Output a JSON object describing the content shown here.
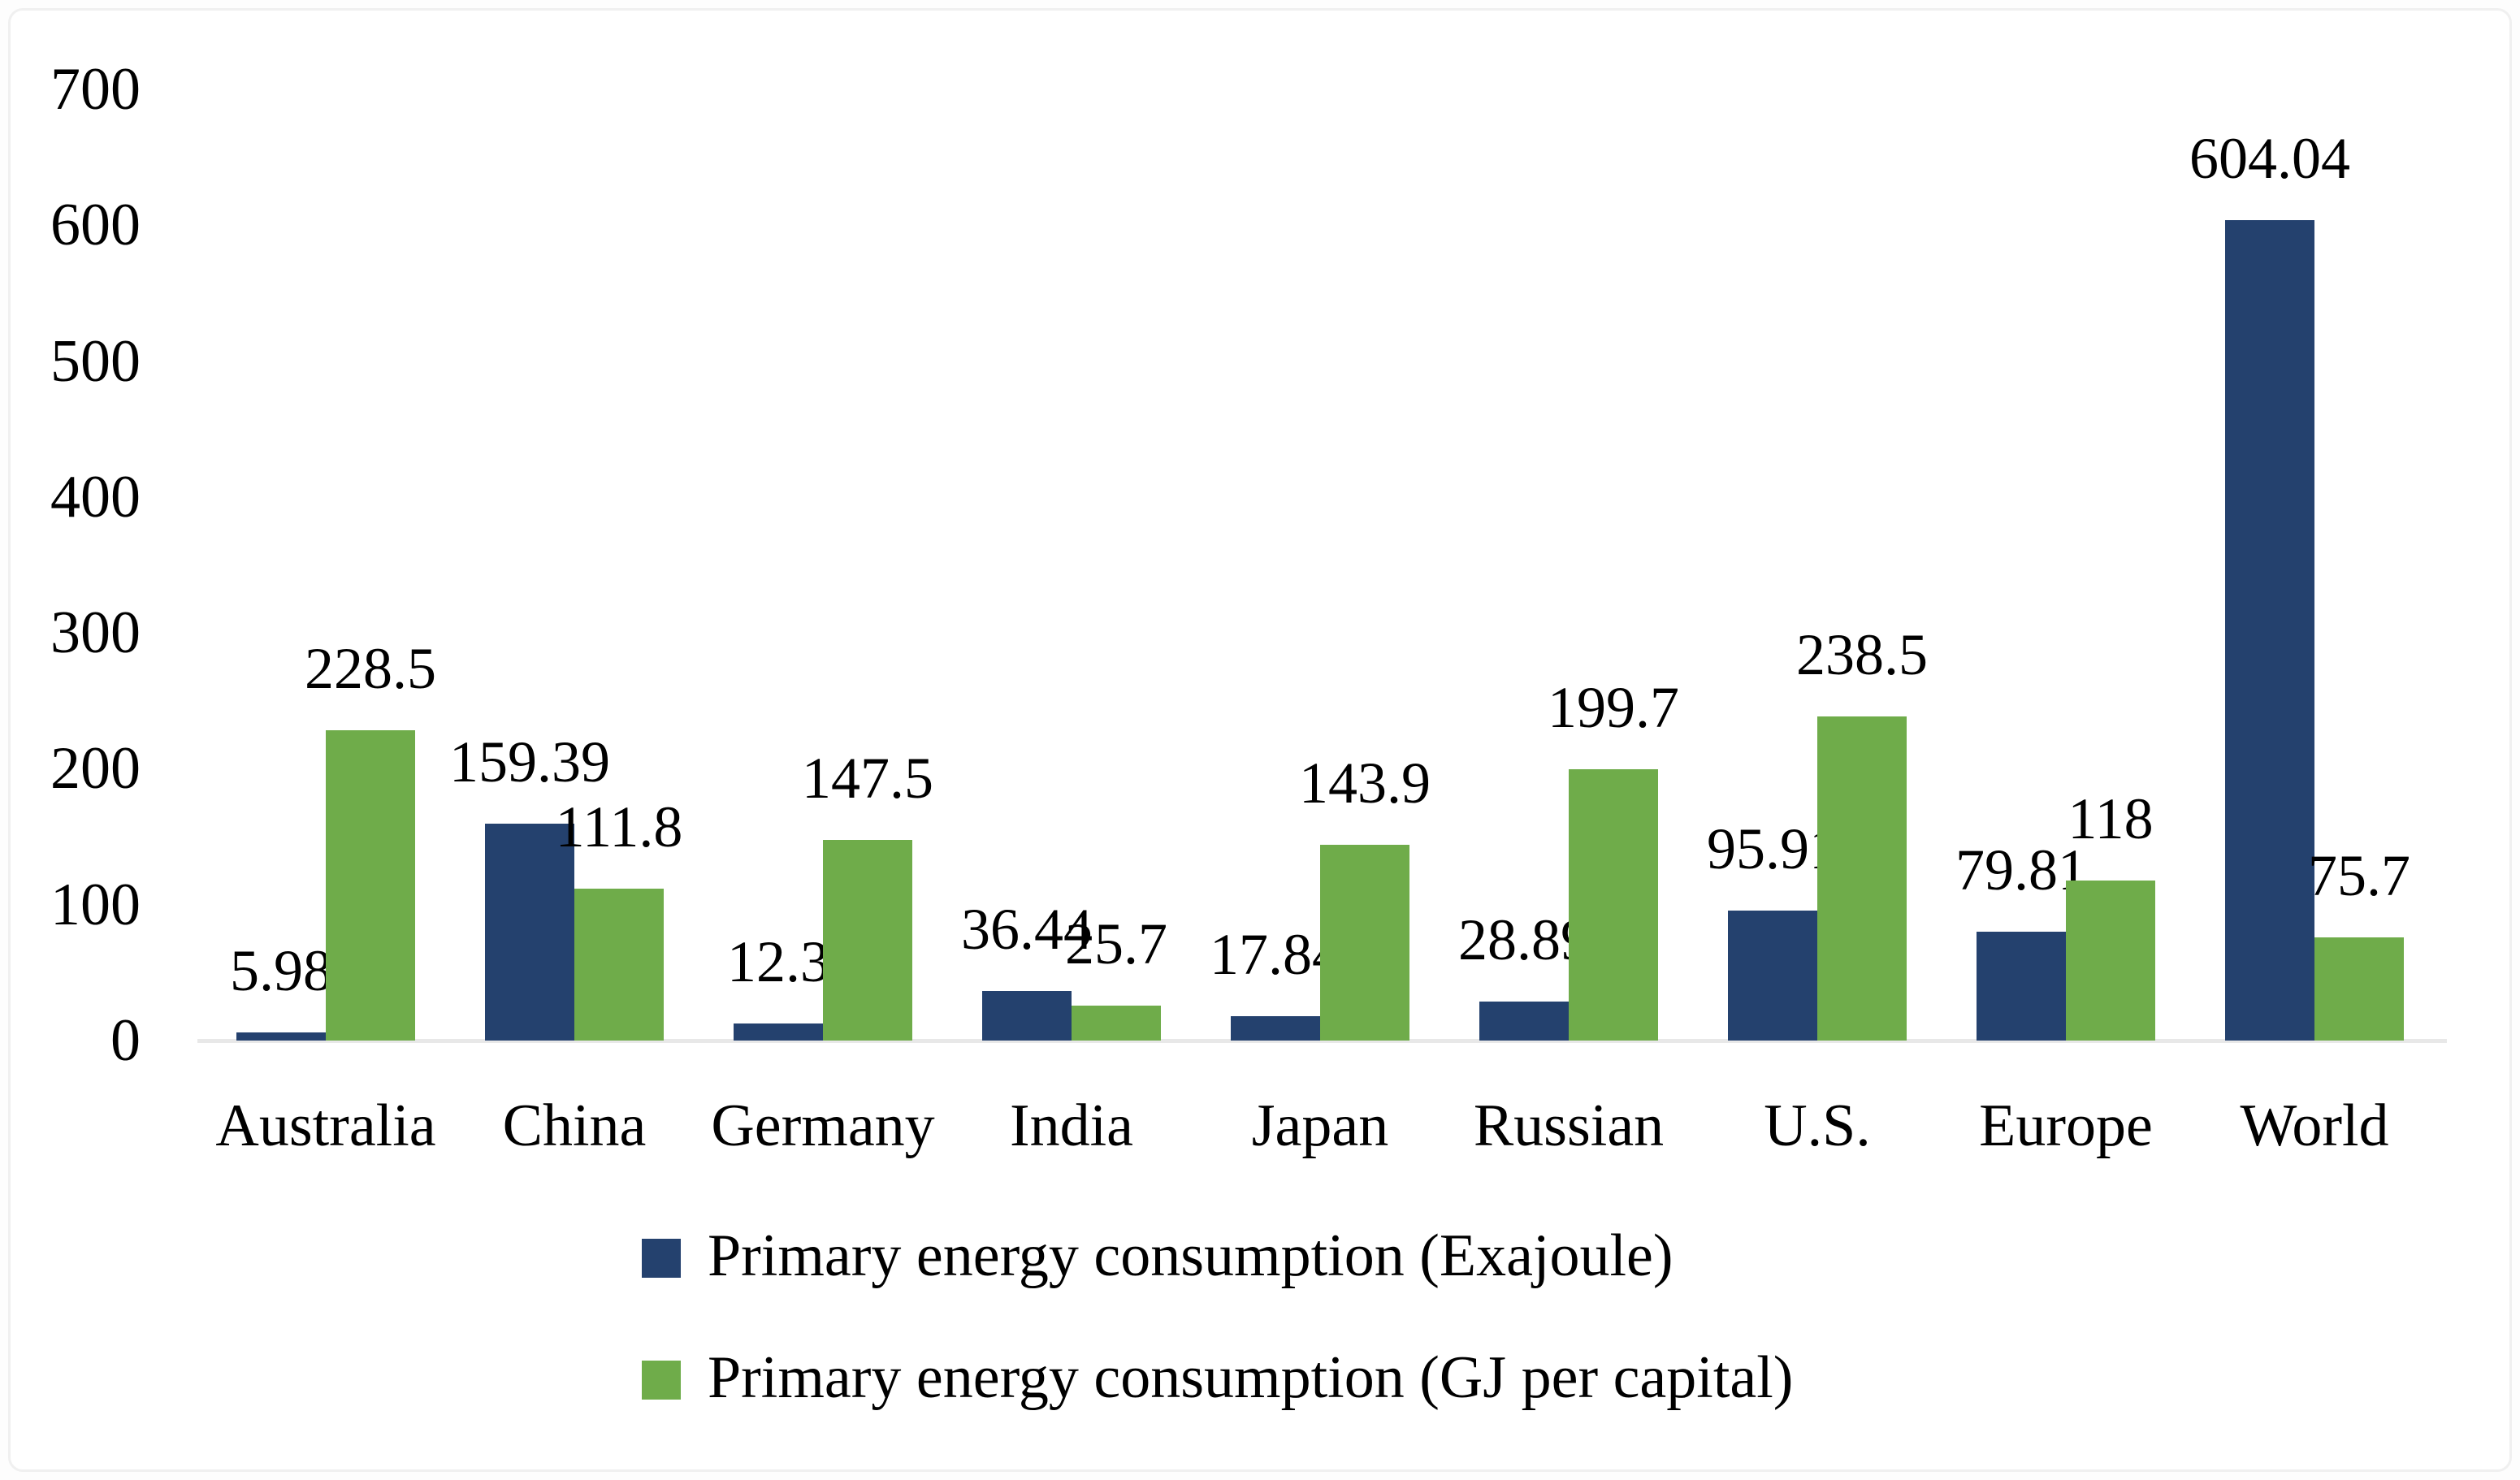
{
  "figure": {
    "background_color": "#ffffff",
    "border_color": "#f0f0f0",
    "axis_line_color": "#e8e8e8",
    "text_color": "#000000"
  },
  "chart_data": {
    "type": "bar",
    "title": "",
    "xlabel": "",
    "ylabel": "",
    "categories": [
      "Australia",
      "China",
      "Germany",
      "India",
      "Japan",
      "Russian",
      "U.S.",
      "Europe",
      "World"
    ],
    "series": [
      {
        "name": "Primary energy consumption (Exajoule)",
        "color": "#24416E",
        "values": [
          5.98,
          159.39,
          12.3,
          36.44,
          17.84,
          28.89,
          95.91,
          79.81,
          604.04
        ],
        "labels": [
          "5.98",
          "159.39",
          "12.3",
          "36.44",
          "17.84",
          "28.89",
          "95.91",
          "79.81",
          "604.04"
        ]
      },
      {
        "name": "Primary energy consumption (GJ per capital)",
        "color": "#6FAC4A",
        "values": [
          228.5,
          111.8,
          147.5,
          25.7,
          143.9,
          199.7,
          238.5,
          118,
          75.7
        ],
        "labels": [
          "228.5",
          "111.8",
          "147.5",
          "25.7",
          "143.9",
          "199.7",
          "238.5",
          "118",
          "75.7"
        ]
      }
    ],
    "ylim": [
      0,
      700
    ],
    "yticks": [
      0,
      100,
      200,
      300,
      400,
      500,
      600,
      700
    ],
    "grid": false,
    "data_labels": "outside-end",
    "legend_position": "bottom-left-block"
  }
}
